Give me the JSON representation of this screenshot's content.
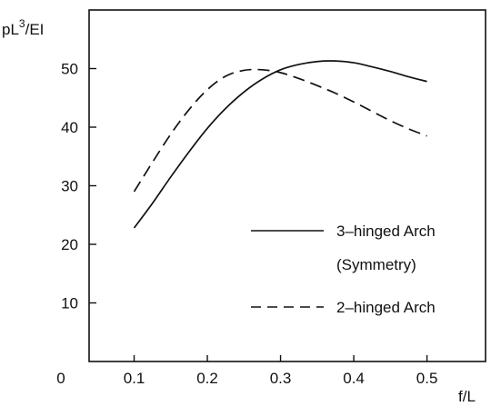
{
  "chart_data": {
    "type": "line",
    "title": "",
    "ylabel": "pL³/EI",
    "ylabel_base": "pL",
    "ylabel_sup": "3",
    "ylabel_rest": "/EI",
    "xlabel": "f/L",
    "origin_label": "0",
    "xlim": [
      0,
      0.58
    ],
    "ylim": [
      0,
      60
    ],
    "x_ticks": [
      0.1,
      0.2,
      0.3,
      0.4,
      0.5
    ],
    "x_tick_labels": [
      "0.1",
      "0.2",
      "0.3",
      "0.4",
      "0.5"
    ],
    "y_ticks": [
      10,
      20,
      30,
      40,
      50
    ],
    "y_tick_labels": [
      "10",
      "20",
      "30",
      "40",
      "50"
    ],
    "grid": false,
    "legend_position": "center-right",
    "series": [
      {
        "legend_lines": [
          "3–hinged Arch",
          "(Symmetry)"
        ],
        "style": "solid",
        "x": [
          0.1,
          0.125,
          0.15,
          0.175,
          0.2,
          0.225,
          0.25,
          0.275,
          0.3,
          0.325,
          0.35,
          0.375,
          0.4,
          0.425,
          0.45,
          0.475,
          0.5
        ],
        "y": [
          22.8,
          27.0,
          31.5,
          35.8,
          39.8,
          43.2,
          46.0,
          48.2,
          49.8,
          50.7,
          51.2,
          51.3,
          51.0,
          50.3,
          49.5,
          48.6,
          47.8
        ]
      },
      {
        "legend_lines": [
          "2–hinged Arch"
        ],
        "style": "dashed",
        "x": [
          0.1,
          0.125,
          0.15,
          0.175,
          0.2,
          0.225,
          0.25,
          0.275,
          0.3,
          0.325,
          0.35,
          0.375,
          0.4,
          0.425,
          0.45,
          0.475,
          0.5
        ],
        "y": [
          29.0,
          34.0,
          38.8,
          43.0,
          46.4,
          48.7,
          49.7,
          49.8,
          49.3,
          48.3,
          47.1,
          45.8,
          44.3,
          42.7,
          41.1,
          39.7,
          38.5
        ]
      }
    ]
  }
}
